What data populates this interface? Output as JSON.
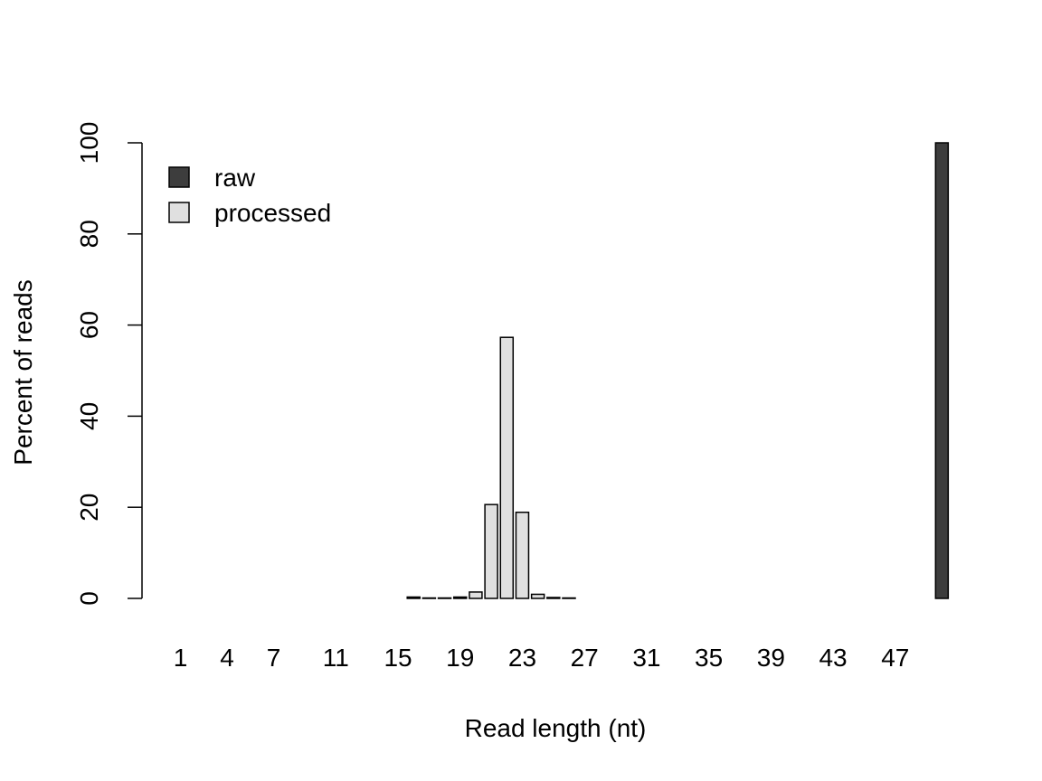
{
  "chart_data": {
    "type": "bar",
    "xlabel": "Read length (nt)",
    "ylabel": "Percent of reads",
    "ylim": [
      0,
      100
    ],
    "yticks": [
      0,
      20,
      40,
      60,
      80,
      100
    ],
    "x": [
      1,
      2,
      3,
      4,
      5,
      6,
      7,
      8,
      9,
      10,
      11,
      12,
      13,
      14,
      15,
      16,
      17,
      18,
      19,
      20,
      21,
      22,
      23,
      24,
      25,
      26,
      27,
      28,
      29,
      30,
      31,
      32,
      33,
      34,
      35,
      36,
      37,
      38,
      39,
      40,
      41,
      42,
      43,
      44,
      45,
      46,
      47,
      48,
      49,
      50
    ],
    "xticks": [
      1,
      4,
      7,
      11,
      15,
      19,
      23,
      27,
      31,
      35,
      39,
      43,
      47
    ],
    "series": [
      {
        "name": "processed",
        "color": "#e0e0e0",
        "values": [
          0,
          0,
          0,
          0,
          0,
          0,
          0,
          0,
          0,
          0,
          0,
          0,
          0,
          0,
          0,
          0.3,
          0.1,
          0.1,
          0.3,
          1.4,
          20.6,
          57.3,
          18.9,
          0.9,
          0.2,
          0.1,
          0,
          0,
          0,
          0,
          0,
          0,
          0,
          0,
          0,
          0,
          0,
          0,
          0,
          0,
          0,
          0,
          0,
          0,
          0,
          0,
          0,
          0,
          0,
          0
        ]
      },
      {
        "name": "raw",
        "color": "#3d3d3d",
        "values": [
          0,
          0,
          0,
          0,
          0,
          0,
          0,
          0,
          0,
          0,
          0,
          0,
          0,
          0,
          0,
          0,
          0,
          0,
          0,
          0,
          0,
          0,
          0,
          0,
          0,
          0,
          0,
          0,
          0,
          0,
          0,
          0,
          0,
          0,
          0,
          0,
          0,
          0,
          0,
          0,
          0,
          0,
          0,
          0,
          0,
          0,
          0,
          0,
          0,
          100
        ]
      }
    ],
    "legend": {
      "position": "top-left",
      "entries": [
        {
          "label": "raw",
          "color": "#3d3d3d"
        },
        {
          "label": "processed",
          "color": "#e0e0e0"
        }
      ]
    }
  }
}
